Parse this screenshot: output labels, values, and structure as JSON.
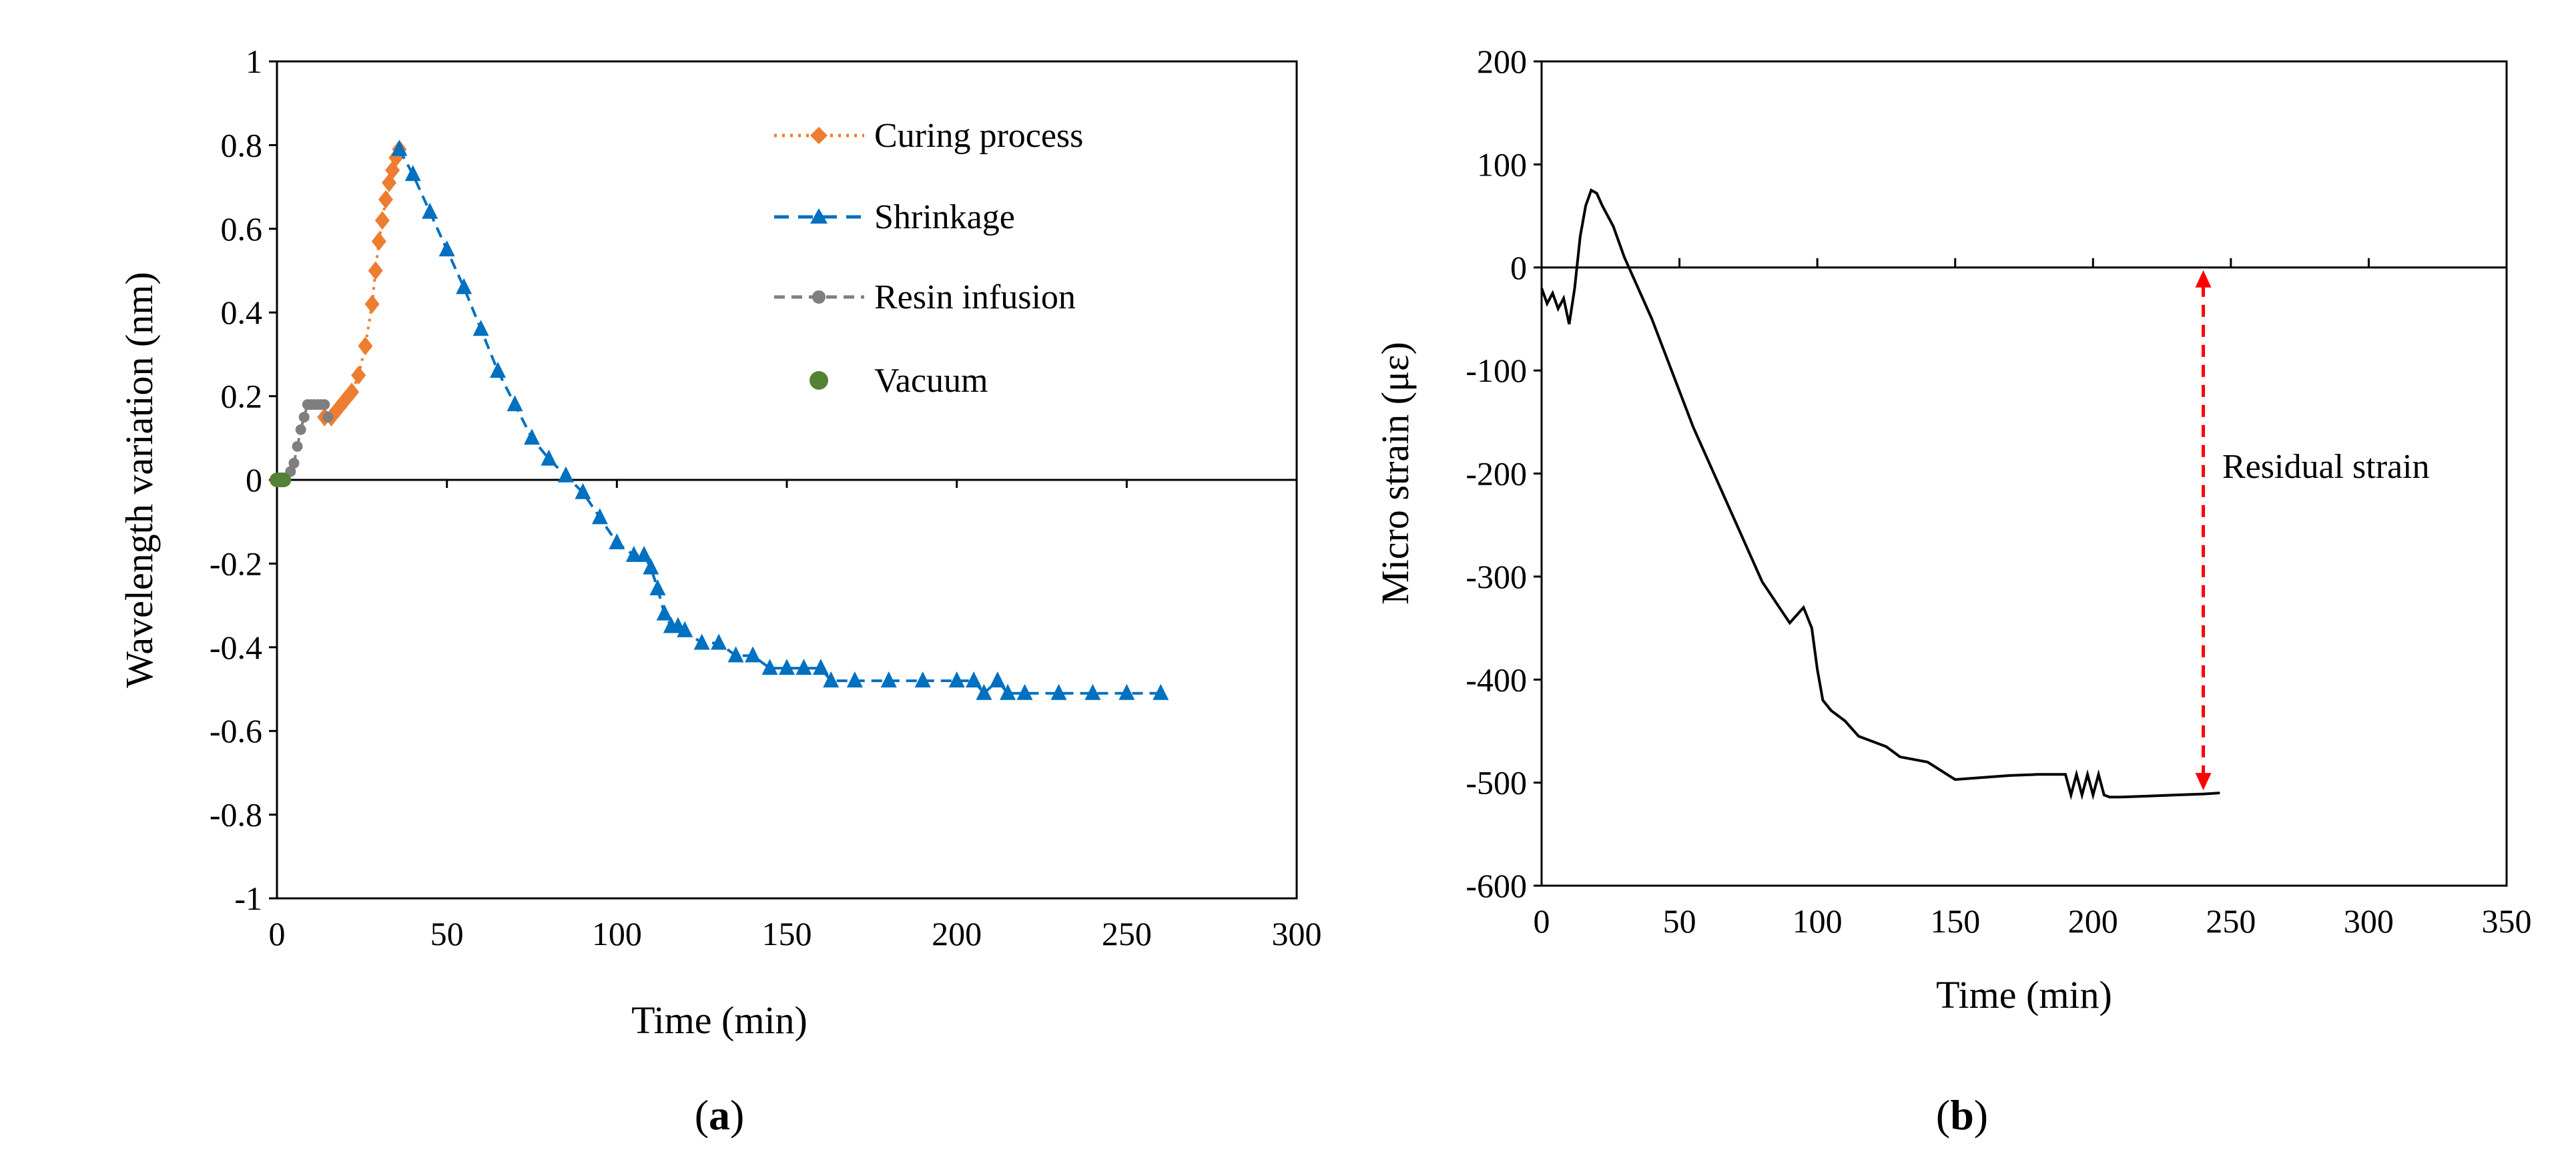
{
  "chart_data": [
    {
      "id": "a",
      "type": "scatter",
      "caption_letter": "a",
      "caption_open": "(",
      "caption_close": ")",
      "xlabel": "Time (min)",
      "ylabel": "Wavelength variation (nm)",
      "xlim": [
        0,
        300
      ],
      "ylim": [
        -1,
        1
      ],
      "xticks": [
        "0",
        "50",
        "100",
        "150",
        "200",
        "250",
        "300"
      ],
      "yticks": [
        "1",
        "0.8",
        "0.6",
        "0.4",
        "0.2",
        "0",
        "-0.2",
        "-0.4",
        "-0.6",
        "-0.8",
        "-1"
      ],
      "legend_position": "top-right",
      "series": [
        {
          "name": "Curing process",
          "color": "#ED7D31",
          "marker": "diamond",
          "line": "dotted",
          "x": [
            14,
            16,
            18,
            20,
            22,
            24,
            26,
            28,
            29,
            30,
            31,
            32,
            33,
            34,
            35,
            36
          ],
          "y": [
            0.15,
            0.15,
            0.17,
            0.19,
            0.21,
            0.25,
            0.32,
            0.42,
            0.5,
            0.57,
            0.62,
            0.67,
            0.71,
            0.74,
            0.77,
            0.79
          ]
        },
        {
          "name": "Shrinkage",
          "color": "#0070C0",
          "marker": "triangle",
          "line": "dashed",
          "x": [
            36,
            40,
            45,
            50,
            55,
            60,
            65,
            70,
            75,
            80,
            85,
            90,
            95,
            100,
            105,
            108,
            110,
            112,
            114,
            116,
            118,
            120,
            125,
            130,
            135,
            140,
            145,
            150,
            155,
            160,
            163,
            170,
            180,
            190,
            200,
            205,
            208,
            212,
            215,
            220,
            230,
            240,
            250,
            260
          ],
          "y": [
            0.79,
            0.73,
            0.64,
            0.55,
            0.46,
            0.36,
            0.26,
            0.18,
            0.1,
            0.05,
            0.01,
            -0.03,
            -0.09,
            -0.15,
            -0.18,
            -0.18,
            -0.21,
            -0.26,
            -0.32,
            -0.35,
            -0.35,
            -0.36,
            -0.39,
            -0.39,
            -0.42,
            -0.42,
            -0.45,
            -0.45,
            -0.45,
            -0.45,
            -0.48,
            -0.48,
            -0.48,
            -0.48,
            -0.48,
            -0.48,
            -0.51,
            -0.48,
            -0.51,
            -0.51,
            -0.51,
            -0.51,
            -0.51,
            -0.51
          ]
        },
        {
          "name": "Resin infusion",
          "color": "#7F7F7F",
          "marker": "circle",
          "line": "dashed",
          "x": [
            2,
            4,
            5,
            6,
            7,
            8,
            9,
            10,
            11,
            12,
            13,
            14,
            15
          ],
          "y": [
            0.0,
            0.02,
            0.04,
            0.08,
            0.12,
            0.15,
            0.18,
            0.18,
            0.18,
            0.18,
            0.18,
            0.18,
            0.15
          ]
        },
        {
          "name": "Vacuum",
          "color": "#548235",
          "marker": "circle",
          "line": "none",
          "x": [
            0,
            0.5,
            1,
            1.5,
            2
          ],
          "y": [
            0,
            0,
            0,
            0,
            0
          ]
        }
      ]
    },
    {
      "id": "b",
      "type": "line",
      "caption_letter": "b",
      "caption_open": "(",
      "caption_close": ")",
      "xlabel": "Time (min)",
      "ylabel": "Micro strain (με)",
      "xlim": [
        0,
        350
      ],
      "ylim": [
        -600,
        200
      ],
      "xticks": [
        "0",
        "50",
        "100",
        "150",
        "200",
        "250",
        "300",
        "350"
      ],
      "yticks": [
        "200",
        "100",
        "0",
        "-100",
        "-200",
        "-300",
        "-400",
        "-500",
        "-600"
      ],
      "annotation": "Residual strain",
      "annotation_color": "#FF0000",
      "annotation_x": 240,
      "annotation_y_from": 0,
      "annotation_y_to": -510,
      "series": [
        {
          "name": "Micro strain",
          "color": "#000000",
          "x": [
            0,
            2,
            4,
            6,
            8,
            10,
            12,
            14,
            16,
            18,
            20,
            22,
            24,
            26,
            28,
            30,
            35,
            40,
            45,
            50,
            55,
            60,
            65,
            70,
            75,
            80,
            85,
            90,
            95,
            98,
            100,
            102,
            105,
            110,
            115,
            120,
            125,
            130,
            140,
            150,
            160,
            170,
            180,
            190,
            192,
            194,
            196,
            198,
            200,
            202,
            204,
            206,
            210,
            220,
            230,
            240,
            246
          ],
          "y": [
            -20,
            -35,
            -25,
            -40,
            -30,
            -55,
            -20,
            30,
            60,
            75,
            72,
            60,
            50,
            40,
            25,
            10,
            -20,
            -50,
            -85,
            -120,
            -155,
            -185,
            -215,
            -245,
            -275,
            -305,
            -325,
            -345,
            -330,
            -350,
            -390,
            -420,
            -430,
            -440,
            -455,
            -460,
            -465,
            -475,
            -480,
            -497,
            -495,
            -493,
            -492,
            -492,
            -512,
            -492,
            -512,
            -492,
            -512,
            -492,
            -512,
            -514,
            -514,
            -513,
            -512,
            -511,
            -510
          ]
        }
      ]
    }
  ]
}
